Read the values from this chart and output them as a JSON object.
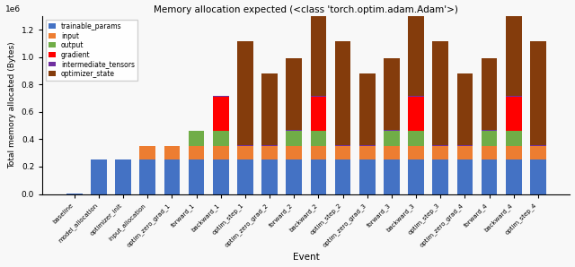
{
  "title": "Memory allocation expected (<class 'torch.optim.adam.Adam'>)",
  "xlabel": "Event",
  "ylabel": "Total memory allocated (Bytes)",
  "categories": [
    "baseline",
    "model_allocation",
    "optimizer_init",
    "input_allocation",
    "optim_zero_grad_1",
    "forward_1",
    "backward_1",
    "optim_step_1",
    "optim_zero_grad_2",
    "forward_2",
    "backward_2",
    "optim_step_2",
    "optim_zero_grad_3",
    "forward_3",
    "backward_3",
    "optim_step_3",
    "optim_zero_grad_4",
    "forward_4",
    "backward_4",
    "optim_step_4"
  ],
  "series": {
    "trainable_params": [
      0.001,
      0.25,
      0.25,
      0.25,
      0.25,
      0.25,
      0.25,
      0.25,
      0.25,
      0.25,
      0.25,
      0.25,
      0.25,
      0.25,
      0.25,
      0.25,
      0.25,
      0.25,
      0.25,
      0.25
    ],
    "input": [
      0.0,
      0.0,
      0.0,
      0.1,
      0.1,
      0.1,
      0.1,
      0.1,
      0.1,
      0.1,
      0.1,
      0.1,
      0.1,
      0.1,
      0.1,
      0.1,
      0.1,
      0.1,
      0.1,
      0.1
    ],
    "output": [
      0.0,
      0.0,
      0.0,
      0.0,
      0.0,
      0.11,
      0.11,
      0.0,
      0.0,
      0.11,
      0.11,
      0.0,
      0.0,
      0.11,
      0.11,
      0.0,
      0.0,
      0.11,
      0.11,
      0.0
    ],
    "gradient": [
      0.0,
      0.0,
      0.0,
      0.0,
      0.0,
      0.0,
      0.25,
      0.0,
      0.0,
      0.0,
      0.25,
      0.0,
      0.0,
      0.0,
      0.25,
      0.0,
      0.0,
      0.0,
      0.25,
      0.0
    ],
    "intermediate_tensors": [
      0.0,
      0.0,
      0.0,
      0.0,
      0.0,
      0.0,
      0.01,
      0.01,
      0.01,
      0.01,
      0.01,
      0.01,
      0.01,
      0.01,
      0.01,
      0.01,
      0.01,
      0.01,
      0.01,
      0.01
    ],
    "optimizer_state": [
      0.0,
      0.0,
      0.0,
      0.0,
      0.0,
      0.0,
      0.0,
      0.76,
      0.52,
      0.52,
      0.62,
      0.76,
      0.52,
      0.52,
      0.62,
      0.76,
      0.52,
      0.52,
      0.62,
      0.76
    ]
  },
  "colors": {
    "trainable_params": "#4472c4",
    "input": "#ed7d31",
    "output": "#70ad47",
    "gradient": "#ff0000",
    "intermediate_tensors": "#7030a0",
    "optimizer_state": "#843c0c"
  },
  "figsize": [
    6.4,
    2.98
  ],
  "dpi": 100,
  "ylim": [
    0,
    1.3
  ],
  "yticks": [
    0.0,
    0.2,
    0.4,
    0.6,
    0.8,
    1.0,
    1.2
  ],
  "bg_color": "#f8f8f8"
}
